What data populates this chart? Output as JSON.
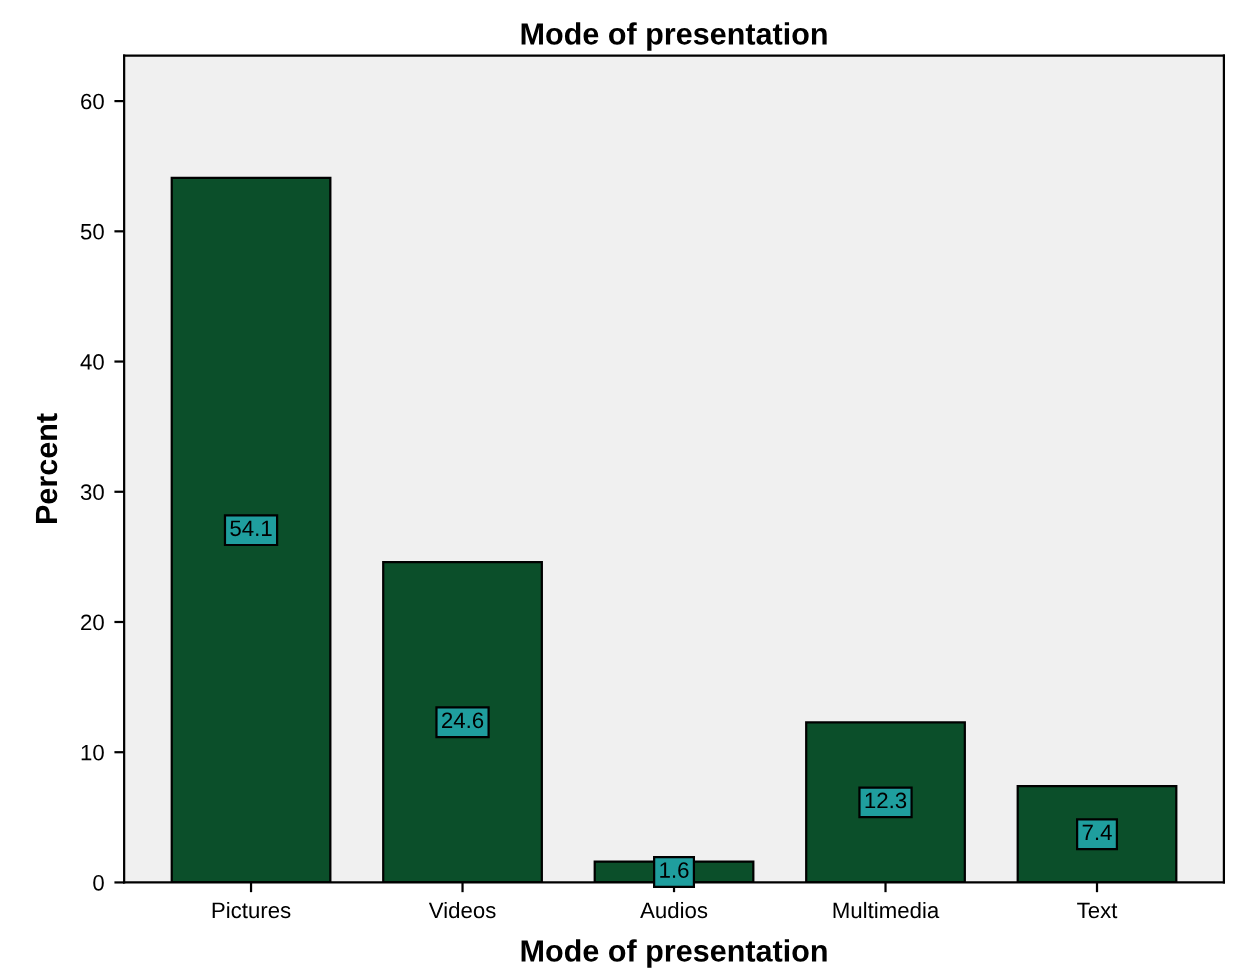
{
  "chart_data": {
    "type": "bar",
    "title": "Mode of presentation",
    "xlabel": "Mode of presentation",
    "ylabel": "Percent",
    "categories": [
      "Pictures",
      "Videos",
      "Audios",
      "Multimedia",
      "Text"
    ],
    "values": [
      54.1,
      24.6,
      1.6,
      12.3,
      7.4
    ],
    "color": "#0b4f2a",
    "data_labels": true,
    "ylim": [
      0,
      63.5
    ],
    "yticks": [
      0,
      10,
      20,
      30,
      40,
      50,
      60
    ],
    "grid": false
  }
}
